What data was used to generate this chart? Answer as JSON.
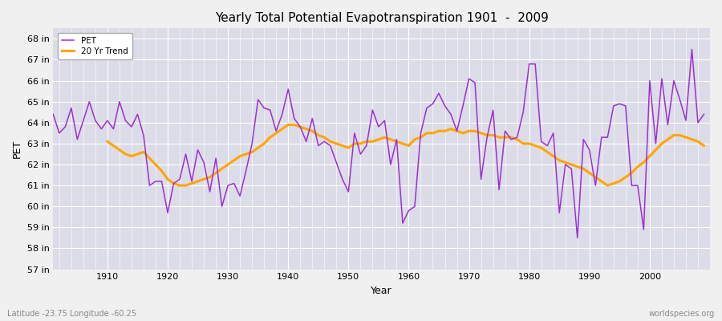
{
  "title": "Yearly Total Potential Evapotranspiration 1901  -  2009",
  "xlabel": "Year",
  "ylabel": "PET",
  "lat_lon_label": "Latitude -23.75 Longitude -60.25",
  "watermark": "worldspecies.org",
  "pet_color": "#9B30D0",
  "trend_color": "#FFA500",
  "fig_bg_color": "#f0f0f0",
  "plot_bg_color": "#dcdce8",
  "grid_color": "#ffffff",
  "ylim": [
    57,
    68.5
  ],
  "ytick_labels": [
    "57 in",
    "58 in",
    "59 in",
    "60 in",
    "61 in",
    "62 in",
    "63 in",
    "64 in",
    "65 in",
    "66 in",
    "67 in",
    "68 in"
  ],
  "ytick_values": [
    57,
    58,
    59,
    60,
    61,
    62,
    63,
    64,
    65,
    66,
    67,
    68
  ],
  "years": [
    1901,
    1902,
    1903,
    1904,
    1905,
    1906,
    1907,
    1908,
    1909,
    1910,
    1911,
    1912,
    1913,
    1914,
    1915,
    1916,
    1917,
    1918,
    1919,
    1920,
    1921,
    1922,
    1923,
    1924,
    1925,
    1926,
    1927,
    1928,
    1929,
    1930,
    1931,
    1932,
    1933,
    1934,
    1935,
    1936,
    1937,
    1938,
    1939,
    1940,
    1941,
    1942,
    1943,
    1944,
    1945,
    1946,
    1947,
    1948,
    1949,
    1950,
    1951,
    1952,
    1953,
    1954,
    1955,
    1956,
    1957,
    1958,
    1959,
    1960,
    1961,
    1962,
    1963,
    1964,
    1965,
    1966,
    1967,
    1968,
    1969,
    1970,
    1971,
    1972,
    1973,
    1974,
    1975,
    1976,
    1977,
    1978,
    1979,
    1980,
    1981,
    1982,
    1983,
    1984,
    1985,
    1986,
    1987,
    1988,
    1989,
    1990,
    1991,
    1992,
    1993,
    1994,
    1995,
    1996,
    1997,
    1998,
    1999,
    2000,
    2001,
    2002,
    2003,
    2004,
    2005,
    2006,
    2007,
    2008,
    2009
  ],
  "pet_values": [
    64.4,
    63.5,
    63.8,
    64.7,
    63.2,
    64.1,
    65.0,
    64.1,
    63.7,
    64.1,
    63.7,
    65.0,
    64.1,
    63.8,
    64.4,
    63.4,
    61.0,
    61.2,
    61.2,
    59.7,
    61.1,
    61.3,
    62.5,
    61.2,
    62.7,
    62.1,
    60.7,
    62.3,
    60.0,
    61.0,
    61.1,
    60.5,
    61.7,
    63.0,
    65.1,
    64.7,
    64.6,
    63.6,
    64.4,
    65.6,
    64.2,
    63.8,
    63.1,
    64.2,
    62.9,
    63.1,
    62.9,
    62.1,
    61.3,
    60.7,
    63.5,
    62.5,
    62.9,
    64.6,
    63.8,
    64.1,
    62.0,
    63.2,
    59.2,
    59.8,
    60.0,
    63.5,
    64.7,
    64.9,
    65.4,
    64.8,
    64.4,
    63.6,
    64.8,
    66.1,
    65.9,
    61.3,
    63.3,
    64.6,
    60.8,
    63.6,
    63.2,
    63.3,
    64.5,
    66.8,
    66.8,
    63.1,
    62.9,
    63.5,
    59.7,
    62.0,
    61.8,
    58.5,
    63.2,
    62.7,
    61.0,
    63.3,
    63.3,
    64.8,
    64.9,
    64.8,
    61.0,
    61.0,
    58.9,
    66.0,
    63.0,
    66.1,
    63.9,
    66.0,
    65.1,
    64.1,
    67.5,
    64.0,
    64.4
  ],
  "trend_values": [
    null,
    null,
    null,
    null,
    null,
    null,
    null,
    null,
    null,
    63.1,
    62.9,
    62.7,
    62.5,
    62.4,
    62.5,
    62.6,
    62.3,
    62.0,
    61.7,
    61.3,
    61.1,
    61.0,
    61.0,
    61.1,
    61.2,
    61.3,
    61.4,
    61.6,
    61.8,
    62.0,
    62.2,
    62.4,
    62.5,
    62.6,
    62.8,
    63.0,
    63.3,
    63.5,
    63.7,
    63.9,
    63.9,
    63.8,
    63.7,
    63.6,
    63.4,
    63.3,
    63.1,
    63.0,
    62.9,
    62.8,
    63.0,
    63.0,
    63.1,
    63.1,
    63.2,
    63.3,
    63.2,
    63.1,
    63.0,
    62.9,
    63.2,
    63.3,
    63.5,
    63.5,
    63.6,
    63.6,
    63.7,
    63.6,
    63.5,
    63.6,
    63.6,
    63.5,
    63.4,
    63.4,
    63.3,
    63.3,
    63.3,
    63.2,
    63.0,
    63.0,
    62.9,
    62.8,
    62.6,
    62.4,
    62.2,
    62.1,
    62.0,
    61.9,
    61.8,
    61.6,
    61.4,
    61.2,
    61.0,
    61.1,
    61.2,
    61.4,
    61.6,
    61.9,
    62.1,
    62.4,
    62.7,
    63.0,
    63.2,
    63.4,
    63.4,
    63.3,
    63.2,
    63.1,
    62.9
  ]
}
